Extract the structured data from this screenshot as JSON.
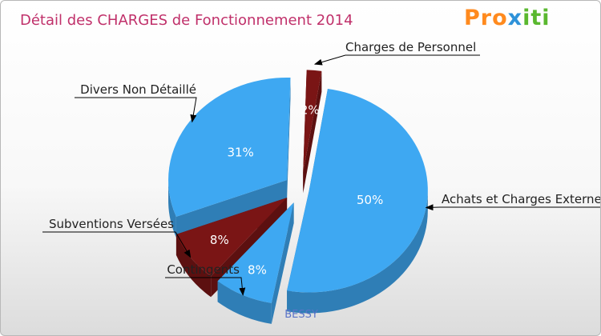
{
  "title": "Détail des CHARGES de Fonctionnement 2014",
  "logo": {
    "text_part1": "Pro",
    "text_part2": "x",
    "text_part3": "iti"
  },
  "colors": {
    "title": "#c0306a",
    "blue": "#3ea8f2",
    "blue_side": "#2e86cf",
    "red": "#7a1515",
    "red_side": "#560c0c"
  },
  "chart_data": {
    "type": "pie",
    "title": "Détail des CHARGES de Fonctionnement 2014",
    "caption": "BESSY",
    "slices": [
      {
        "label": "Charges de Personnel",
        "value": 2,
        "pct_label": "2%",
        "color": "#7a1515"
      },
      {
        "label": "Achats et Charges Externes",
        "value": 50,
        "pct_label": "50%",
        "color": "#3ea8f2"
      },
      {
        "label": "Contingents",
        "value": 8,
        "pct_label": "8%",
        "color": "#3ea8f2"
      },
      {
        "label": "Subventions Versées",
        "value": 8,
        "pct_label": "8%",
        "color": "#7a1515"
      },
      {
        "label": "Divers Non Détaillé",
        "value": 31,
        "pct_label": "31%",
        "color": "#3ea8f2"
      }
    ]
  }
}
